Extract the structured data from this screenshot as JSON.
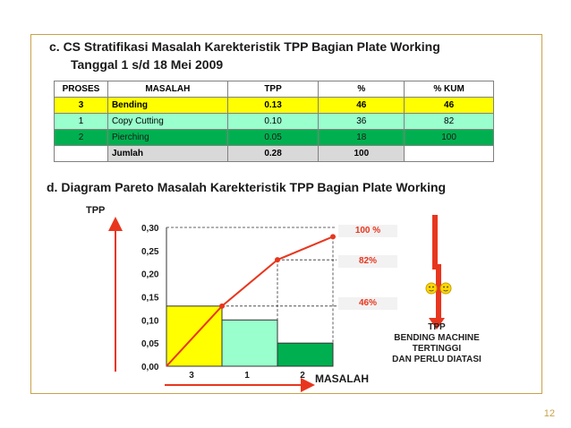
{
  "section_c": {
    "line1": "c.   CS Stratifikasi Masalah Karekteristik TPP  Bagian Plate Working",
    "line2": "Tanggal  1 s/d 18 Mei 2009"
  },
  "table": {
    "headers": [
      "PROSES",
      "MASALAH",
      "TPP",
      "%",
      "% KUM"
    ],
    "rows": [
      [
        "3",
        "Bending",
        "0.13",
        "46",
        "46"
      ],
      [
        "1",
        "Copy Cutting",
        "0.10",
        "36",
        "82"
      ],
      [
        "2",
        "Pierching",
        "0.05",
        "18",
        "100"
      ]
    ],
    "summary": [
      "",
      "Jumlah",
      "0.28",
      "100",
      ""
    ]
  },
  "section_d": {
    "title": "d.   Diagram Pareto  Masalah Karekteristik TPP  Bagian Plate Working"
  },
  "chart_data": {
    "type": "bar",
    "ylabel": "TPP",
    "xlabel": "MASALAH",
    "categories": [
      "3",
      "1",
      "2"
    ],
    "values": [
      0.13,
      0.1,
      0.05
    ],
    "bar_colors": [
      "#ffff00",
      "#99ffcc",
      "#00b050"
    ],
    "cumulative_line": {
      "color": "#e8361e",
      "values": [
        0.13,
        0.23,
        0.28
      ]
    },
    "cumulative_labels": [
      "46%",
      "82%",
      "100 %"
    ],
    "ylim": [
      0,
      0.3
    ],
    "yticks": [
      "0,00",
      "0,05",
      "0,10",
      "0,15",
      "0,20",
      "0,25",
      "0,30"
    ]
  },
  "conclusion": {
    "lines": [
      "TPP",
      "BENDING MACHINE",
      "TERTINGGI",
      "DAN PERLU DIATASI"
    ]
  },
  "page_number": "12"
}
